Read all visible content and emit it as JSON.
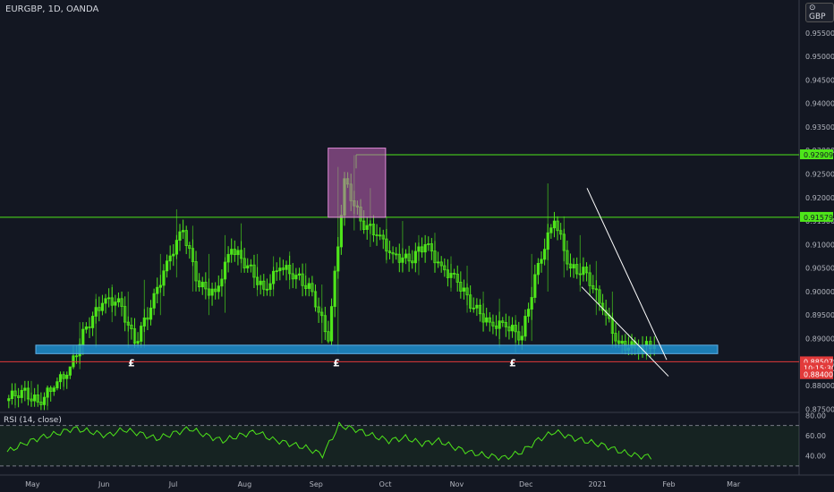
{
  "header": {
    "symbol_label": "EURGBP, 1D, OANDA",
    "currency_badge": "GBP"
  },
  "rsi_label": "RSI (14, close)",
  "colors": {
    "bull": "#4ee61a",
    "bear": "#4ee61a",
    "rsi_line": "#4ee61a",
    "support_zone": "#1f8fcf",
    "resistance_line": "#4ee61a",
    "red_line": "#e23a3a",
    "box": "#c264b8"
  },
  "chart_data": [
    {
      "type": "candlestick",
      "title": "EURGBP, 1D, OANDA",
      "x_axis": [
        "May",
        "Jun",
        "Jul",
        "Aug",
        "Sep",
        "Oct",
        "Nov",
        "Dec",
        "2021",
        "Feb",
        "Mar"
      ],
      "y_axis": [
        "0.96000",
        "0.95500",
        "0.95000",
        "0.94500",
        "0.94000",
        "0.93500",
        "0.93000",
        "0.92500",
        "0.92000",
        "0.91500",
        "0.91000",
        "0.90500",
        "0.90000",
        "0.89500",
        "0.89000",
        "0.88500",
        "0.88000",
        "0.87500"
      ],
      "ylim": [
        0.8745,
        0.962
      ],
      "series": [
        {
          "name": "",
          "values": [
            {
              "x": "2020-04-20",
              "o": 0.8768,
              "h": 0.8805,
              "l": 0.8752,
              "c": 0.879
            },
            {
              "x": "2020-04-27",
              "o": 0.879,
              "h": 0.881,
              "l": 0.8755,
              "c": 0.8765
            },
            {
              "x": "2020-05-04",
              "o": 0.8765,
              "h": 0.88,
              "l": 0.8748,
              "c": 0.8795
            },
            {
              "x": "2020-05-11",
              "o": 0.8795,
              "h": 0.883,
              "l": 0.879,
              "c": 0.884
            },
            {
              "x": "2020-05-18",
              "o": 0.884,
              "h": 0.8935,
              "l": 0.8835,
              "c": 0.8925
            },
            {
              "x": "2020-05-25",
              "o": 0.8925,
              "h": 0.8995,
              "l": 0.888,
              "c": 0.8975
            },
            {
              "x": "2020-06-01",
              "o": 0.8975,
              "h": 0.9015,
              "l": 0.8935,
              "c": 0.8985
            },
            {
              "x": "2020-06-08",
              "o": 0.8985,
              "h": 0.9,
              "l": 0.888,
              "c": 0.889
            },
            {
              "x": "2020-06-15",
              "o": 0.889,
              "h": 0.9025,
              "l": 0.888,
              "c": 0.8965
            },
            {
              "x": "2020-06-22",
              "o": 0.8965,
              "h": 0.908,
              "l": 0.895,
              "c": 0.9065
            },
            {
              "x": "2020-06-29",
              "o": 0.9065,
              "h": 0.9175,
              "l": 0.903,
              "c": 0.913
            },
            {
              "x": "2020-07-06",
              "o": 0.913,
              "h": 0.914,
              "l": 0.9,
              "c": 0.901
            },
            {
              "x": "2020-07-13",
              "o": 0.901,
              "h": 0.908,
              "l": 0.895,
              "c": 0.9
            },
            {
              "x": "2020-07-20",
              "o": 0.9,
              "h": 0.912,
              "l": 0.8955,
              "c": 0.909
            },
            {
              "x": "2020-07-27",
              "o": 0.909,
              "h": 0.9145,
              "l": 0.904,
              "c": 0.9055
            },
            {
              "x": "2020-08-03",
              "o": 0.9055,
              "h": 0.908,
              "l": 0.899,
              "c": 0.9005
            },
            {
              "x": "2020-08-10",
              "o": 0.9005,
              "h": 0.9075,
              "l": 0.899,
              "c": 0.905
            },
            {
              "x": "2020-08-17",
              "o": 0.905,
              "h": 0.9085,
              "l": 0.9005,
              "c": 0.9035
            },
            {
              "x": "2020-08-24",
              "o": 0.9035,
              "h": 0.906,
              "l": 0.899,
              "c": 0.9
            },
            {
              "x": "2020-08-31",
              "o": 0.9,
              "h": 0.9015,
              "l": 0.889,
              "c": 0.8895
            },
            {
              "x": "2020-09-07",
              "o": 0.8895,
              "h": 0.9265,
              "l": 0.887,
              "c": 0.924
            },
            {
              "x": "2020-09-14",
              "o": 0.924,
              "h": 0.929,
              "l": 0.913,
              "c": 0.915
            },
            {
              "x": "2020-09-21",
              "o": 0.915,
              "h": 0.922,
              "l": 0.9095,
              "c": 0.912
            },
            {
              "x": "2020-09-28",
              "o": 0.912,
              "h": 0.916,
              "l": 0.906,
              "c": 0.908
            },
            {
              "x": "2020-10-05",
              "o": 0.908,
              "h": 0.915,
              "l": 0.904,
              "c": 0.9065
            },
            {
              "x": "2020-10-12",
              "o": 0.9065,
              "h": 0.912,
              "l": 0.9035,
              "c": 0.91
            },
            {
              "x": "2020-10-19",
              "o": 0.91,
              "h": 0.9125,
              "l": 0.904,
              "c": 0.9055
            },
            {
              "x": "2020-10-26",
              "o": 0.9055,
              "h": 0.9075,
              "l": 0.9,
              "c": 0.902
            },
            {
              "x": "2020-11-02",
              "o": 0.902,
              "h": 0.9055,
              "l": 0.8955,
              "c": 0.8965
            },
            {
              "x": "2020-11-09",
              "o": 0.8965,
              "h": 0.9,
              "l": 0.8915,
              "c": 0.8935
            },
            {
              "x": "2020-11-16",
              "o": 0.8935,
              "h": 0.8985,
              "l": 0.888,
              "c": 0.8925
            },
            {
              "x": "2020-11-23",
              "o": 0.8925,
              "h": 0.895,
              "l": 0.887,
              "c": 0.8905
            },
            {
              "x": "2020-11-30",
              "o": 0.8905,
              "h": 0.908,
              "l": 0.8895,
              "c": 0.906
            },
            {
              "x": "2020-12-07",
              "o": 0.906,
              "h": 0.923,
              "l": 0.9,
              "c": 0.915
            },
            {
              "x": "2020-12-14",
              "o": 0.915,
              "h": 0.916,
              "l": 0.903,
              "c": 0.905
            },
            {
              "x": "2020-12-21",
              "o": 0.905,
              "h": 0.912,
              "l": 0.9,
              "c": 0.904
            },
            {
              "x": "2020-12-28",
              "o": 0.904,
              "h": 0.9065,
              "l": 0.895,
              "c": 0.896
            },
            {
              "x": "2021-01-04",
              "o": 0.896,
              "h": 0.9,
              "l": 0.888,
              "c": 0.889
            },
            {
              "x": "2021-01-11",
              "o": 0.889,
              "h": 0.891,
              "l": 0.8865,
              "c": 0.888
            },
            {
              "x": "2021-01-18",
              "o": 0.888,
              "h": 0.8905,
              "l": 0.8855,
              "c": 0.8885
            }
          ]
        }
      ],
      "price_tags": [
        {
          "label": "0.92909",
          "value": 0.92909,
          "bg": "#4ee61a",
          "fg": "#131722"
        },
        {
          "label": "0.91579",
          "value": 0.91579,
          "bg": "#4ee61a",
          "fg": "#131722"
        },
        {
          "label": "0.88507",
          "value": 0.88507,
          "bg": "#e23a3a",
          "fg": "#ffffff"
        },
        {
          "label": "10:15:30",
          "value": 0.88372,
          "bg": "#e23a3a",
          "fg": "#ffffff"
        },
        {
          "label": "0.88400",
          "value": 0.88235,
          "bg": "#e23a3a",
          "fg": "#ffffff"
        }
      ],
      "annotations": [
        "£",
        "£",
        "£"
      ]
    },
    {
      "type": "line",
      "title": "RSI (14, close)",
      "y_axis": [
        "80.00",
        "60.00",
        "40.00"
      ],
      "ylim": [
        22,
        82
      ],
      "bands": [
        70,
        30
      ],
      "series": [
        {
          "name": "",
          "values": [
            44,
            52,
            58,
            62,
            67,
            64,
            60,
            66,
            62,
            57,
            62,
            67,
            60,
            55,
            60,
            64,
            56,
            52,
            48,
            41,
            70,
            66,
            60,
            55,
            58,
            52,
            55,
            48,
            43,
            40,
            38,
            44,
            56,
            64,
            58,
            54,
            50,
            44,
            40,
            39
          ]
        }
      ]
    }
  ]
}
